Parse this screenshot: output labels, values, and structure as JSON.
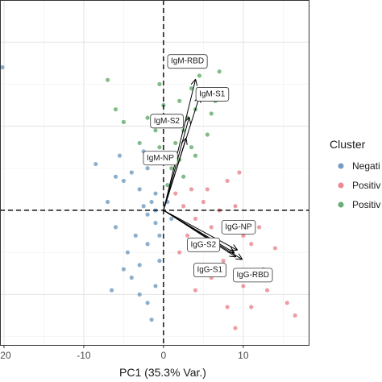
{
  "chart_data": {
    "type": "scatter",
    "title": "",
    "xlabel": "PC1 (35.3% Var.)",
    "ylabel": "",
    "xlim": [
      -20.5,
      18.3
    ],
    "ylim": [
      -16,
      25
    ],
    "x_ticks": [
      -20,
      -10,
      0,
      10
    ],
    "x_tick_labels": [
      "-20",
      "-10",
      "0",
      "10"
    ],
    "grid": true,
    "reference_lines": {
      "x": 0,
      "y": 0,
      "style": "dashed"
    },
    "legend": {
      "title": "Cluster",
      "position": "right",
      "entries": [
        {
          "label": "Negati",
          "color": "#5b8db8"
        },
        {
          "label": "Positiv",
          "color": "#e8737f"
        },
        {
          "label": "Positiv",
          "color": "#4d9f58"
        }
      ]
    },
    "series": [
      {
        "color": "#5b8db8",
        "points": [
          [
            -20.2,
            17.0
          ],
          [
            -1.5,
            1.0
          ],
          [
            -2.0,
            -0.5
          ],
          [
            -1.0,
            2.0
          ],
          [
            -2.5,
            0.5
          ],
          [
            -3.0,
            2.5
          ],
          [
            -1.0,
            -1.5
          ],
          [
            -0.5,
            -3.0
          ],
          [
            -2.0,
            -4.0
          ],
          [
            -3.5,
            -3.0
          ],
          [
            -4.5,
            -5.0
          ],
          [
            -5.0,
            3.5
          ],
          [
            -4.0,
            4.5
          ],
          [
            -6.0,
            4.0
          ],
          [
            -3.0,
            -6.5
          ],
          [
            -4.0,
            -8.0
          ],
          [
            -5.0,
            -7.0
          ],
          [
            -7.0,
            1.0
          ],
          [
            -6.0,
            -2.0
          ],
          [
            -3.0,
            -10.0
          ],
          [
            -2.0,
            -11.0
          ],
          [
            -1.5,
            -13.0
          ],
          [
            -0.5,
            -6.0
          ],
          [
            -1.0,
            -9.0
          ],
          [
            -8.5,
            5.5
          ],
          [
            -5.5,
            6.5
          ],
          [
            -2.0,
            5.0
          ],
          [
            -1.0,
            0.0
          ],
          [
            0.5,
            1.0
          ],
          [
            1.0,
            -1.0
          ],
          [
            -6.5,
            -9.5
          ],
          [
            -2.5,
            7.0
          ]
        ]
      },
      {
        "color": "#e8737f",
        "points": [
          [
            2.5,
            0.5
          ],
          [
            4.0,
            -1.0
          ],
          [
            5.0,
            1.0
          ],
          [
            6.0,
            -2.0
          ],
          [
            3.0,
            -3.0
          ],
          [
            7.0,
            0.0
          ],
          [
            8.0,
            -1.5
          ],
          [
            9.0,
            0.5
          ],
          [
            10.0,
            -3.0
          ],
          [
            11.0,
            -4.0
          ],
          [
            12.0,
            -2.0
          ],
          [
            14.0,
            -4.5
          ],
          [
            3.5,
            2.5
          ],
          [
            5.5,
            2.5
          ],
          [
            8.0,
            3.5
          ],
          [
            9.5,
            4.5
          ],
          [
            6.5,
            -4.5
          ],
          [
            7.5,
            -6.0
          ],
          [
            9.0,
            -7.5
          ],
          [
            10.0,
            -9.0
          ],
          [
            6.0,
            -8.0
          ],
          [
            13.0,
            -9.5
          ],
          [
            15.5,
            -11.0
          ],
          [
            16.5,
            -12.5
          ],
          [
            9.0,
            -14.0
          ],
          [
            8.0,
            -11.5
          ],
          [
            4.0,
            -9.5
          ],
          [
            11.0,
            -11.5
          ],
          [
            2.0,
            -5.0
          ],
          [
            1.5,
            2.0
          ],
          [
            12.5,
            -7.0
          ]
        ]
      },
      {
        "color": "#4d9f58",
        "points": [
          [
            0.5,
            3.0
          ],
          [
            1.0,
            5.0
          ],
          [
            2.0,
            6.0
          ],
          [
            1.5,
            8.0
          ],
          [
            2.5,
            9.5
          ],
          [
            3.0,
            11.0
          ],
          [
            4.0,
            12.0
          ],
          [
            2.0,
            13.0
          ],
          [
            3.5,
            14.5
          ],
          [
            4.5,
            16.0
          ],
          [
            5.5,
            14.0
          ],
          [
            6.0,
            11.5
          ],
          [
            3.0,
            17.5
          ],
          [
            6.5,
            13.0
          ],
          [
            1.0,
            10.5
          ],
          [
            -0.5,
            7.5
          ],
          [
            -1.0,
            9.5
          ],
          [
            -3.0,
            8.0
          ],
          [
            -5.0,
            10.5
          ],
          [
            -7.0,
            15.5
          ],
          [
            -6.0,
            12.0
          ],
          [
            0.0,
            12.5
          ],
          [
            5.0,
            18.0
          ],
          [
            -2.0,
            11.0
          ],
          [
            4.0,
            6.5
          ],
          [
            2.5,
            4.0
          ],
          [
            7.0,
            16.5
          ],
          [
            -0.5,
            15.0
          ],
          [
            3.5,
            7.5
          ],
          [
            5.5,
            9.0
          ]
        ]
      }
    ],
    "loadings": [
      {
        "label": "IgM-RBD",
        "x": 4.0,
        "y": 15.5
      },
      {
        "label": "IgM-S1",
        "x": 4.5,
        "y": 13.5
      },
      {
        "label": "IgM-S2",
        "x": 3.2,
        "y": 11.0
      },
      {
        "label": "IgM-NP",
        "x": 2.8,
        "y": 8.5
      },
      {
        "label": "IgG-NP",
        "x": 9.2,
        "y": -4.7
      },
      {
        "label": "IgG-S2",
        "x": 8.8,
        "y": -5.0
      },
      {
        "label": "IgG-S1",
        "x": 9.0,
        "y": -5.5
      },
      {
        "label": "IgG-RBD",
        "x": 9.8,
        "y": -5.8
      }
    ]
  }
}
